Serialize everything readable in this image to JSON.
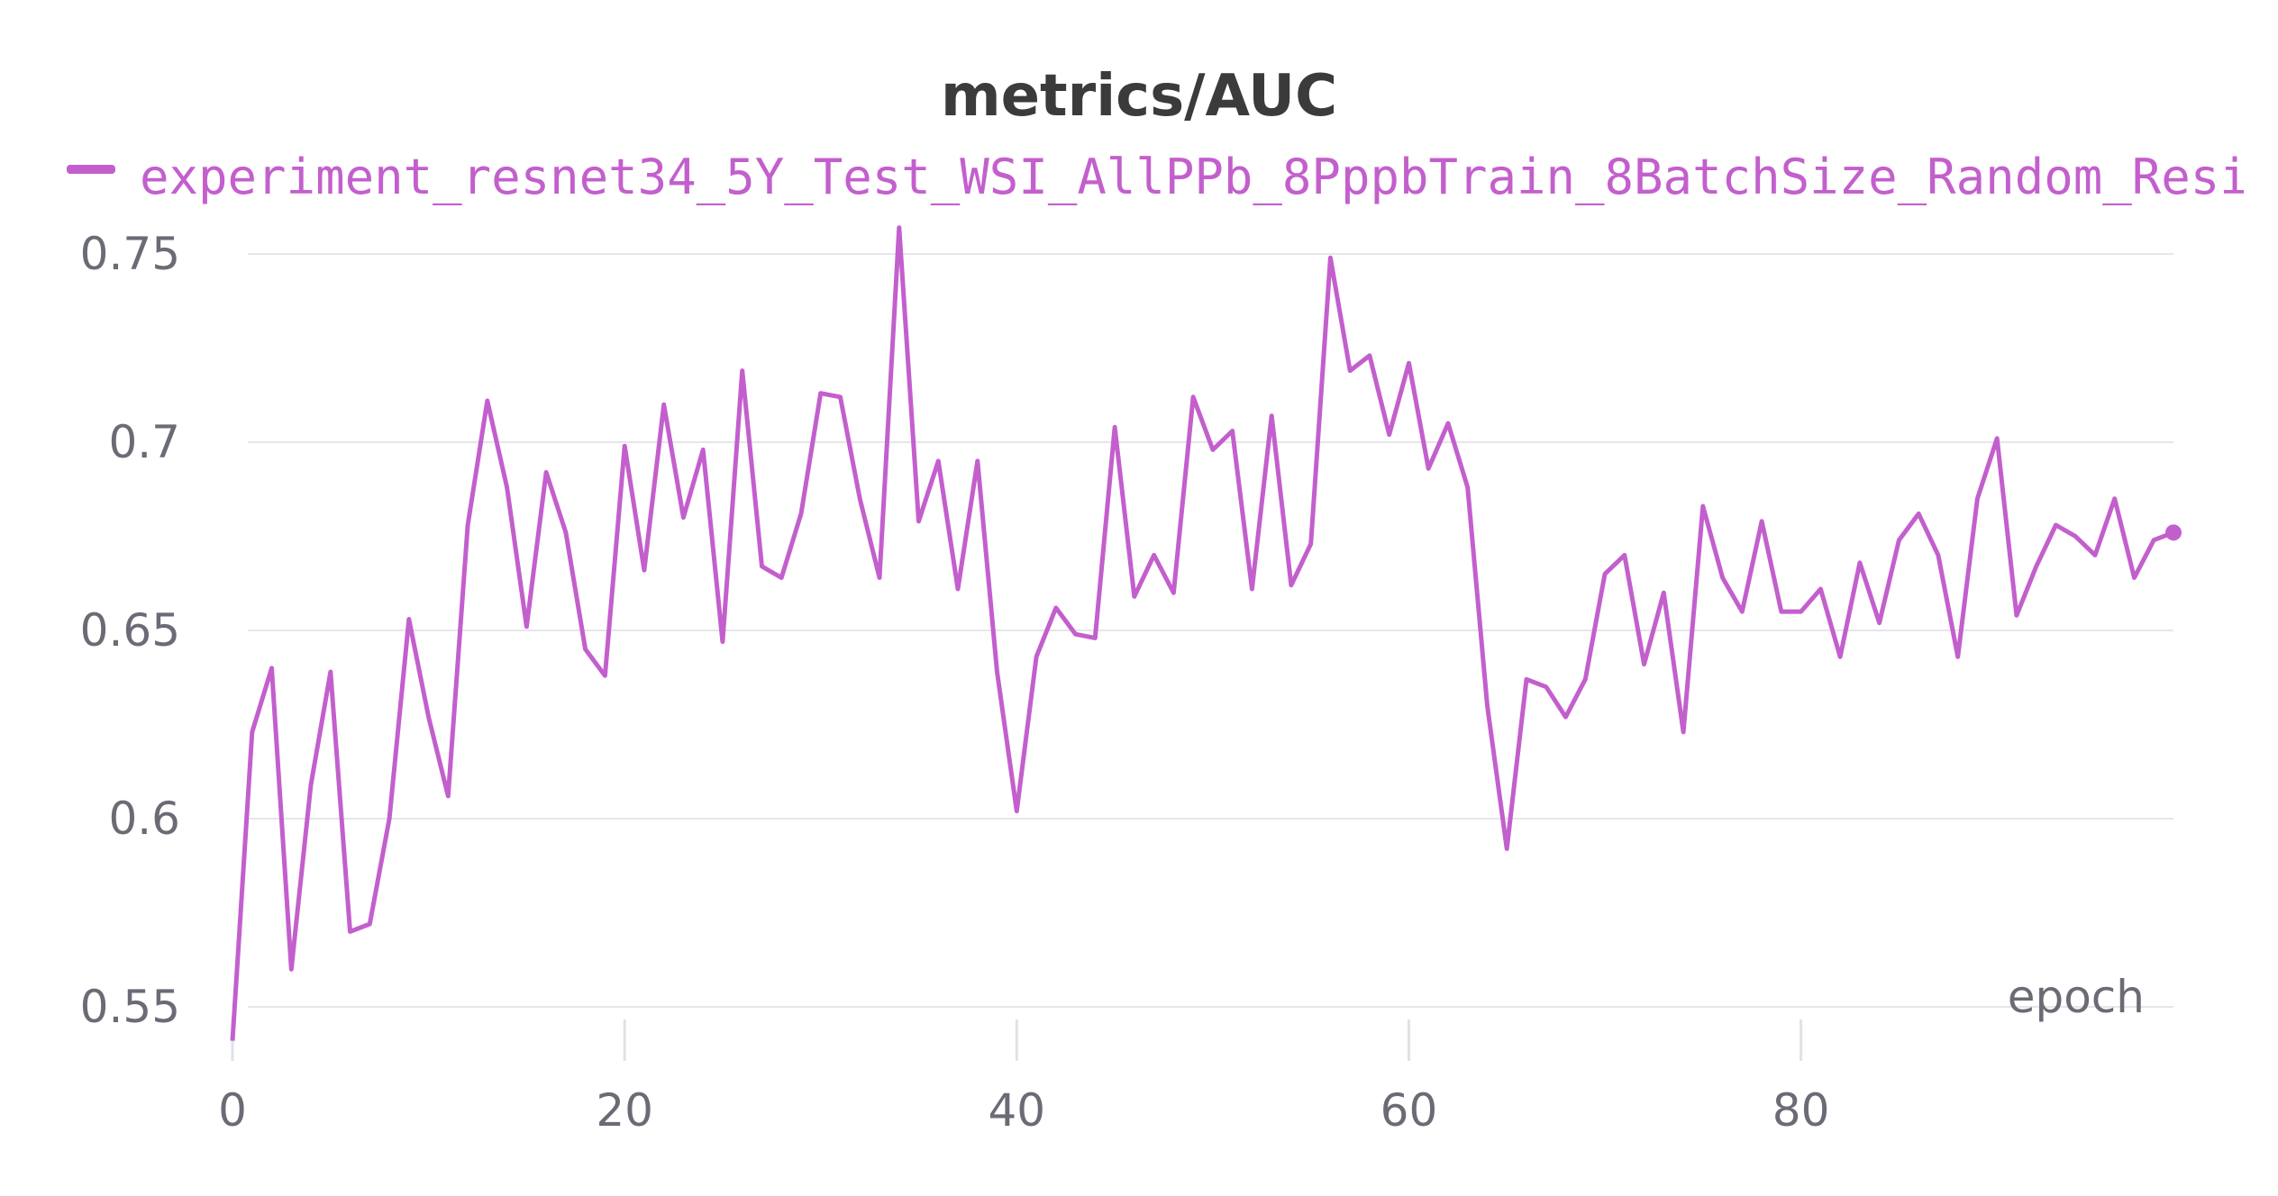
{
  "chart_data": {
    "type": "line",
    "title": "metrics/AUC",
    "xlabel": "epoch",
    "ylabel": "",
    "xlim": [
      0,
      99
    ],
    "ylim": [
      0.54,
      0.757
    ],
    "x_ticks": [
      0,
      20,
      40,
      60,
      80
    ],
    "x_tick_labels": [
      "0",
      "20",
      "40",
      "60",
      "80"
    ],
    "y_ticks": [
      0.55,
      0.6,
      0.65,
      0.7,
      0.75
    ],
    "y_tick_labels": [
      "0.55",
      "0.6",
      "0.65",
      "0.7",
      "0.75"
    ],
    "grid": true,
    "legend_position": "top-left",
    "series": [
      {
        "name": "experiment_resnet34_5Y_Test_WSI_AllPPb_8PppbTrain_8BatchSize_Random_Resi",
        "color": "#c35fcd",
        "x": [
          0,
          1,
          2,
          3,
          4,
          5,
          6,
          7,
          8,
          9,
          10,
          11,
          12,
          13,
          14,
          15,
          16,
          17,
          18,
          19,
          20,
          21,
          22,
          23,
          24,
          25,
          26,
          27,
          28,
          29,
          30,
          31,
          32,
          33,
          34,
          35,
          36,
          37,
          38,
          39,
          40,
          41,
          42,
          43,
          44,
          45,
          46,
          47,
          48,
          49,
          50,
          51,
          52,
          53,
          54,
          55,
          56,
          57,
          58,
          59,
          60,
          61,
          62,
          63,
          64,
          65,
          66,
          67,
          68,
          69,
          70,
          71,
          72,
          73,
          74,
          75,
          76,
          77,
          78,
          79,
          80,
          81,
          82,
          83,
          84,
          85,
          86,
          87,
          88,
          89,
          90,
          91,
          92,
          93,
          94,
          95,
          96,
          97,
          98,
          99
        ],
        "values": [
          0.541,
          0.623,
          0.64,
          0.56,
          0.609,
          0.639,
          0.57,
          0.572,
          0.6,
          0.653,
          0.627,
          0.606,
          0.678,
          0.711,
          0.688,
          0.651,
          0.692,
          0.676,
          0.645,
          0.638,
          0.699,
          0.666,
          0.71,
          0.68,
          0.698,
          0.647,
          0.719,
          0.667,
          0.664,
          0.681,
          0.713,
          0.712,
          0.685,
          0.664,
          0.757,
          0.679,
          0.695,
          0.661,
          0.695,
          0.639,
          0.602,
          0.643,
          0.656,
          0.649,
          0.648,
          0.704,
          0.659,
          0.67,
          0.66,
          0.712,
          0.698,
          0.703,
          0.661,
          0.707,
          0.662,
          0.673,
          0.749,
          0.719,
          0.723,
          0.702,
          0.721,
          0.693,
          0.705,
          0.688,
          0.63,
          0.592,
          0.637,
          0.635,
          0.627,
          0.637,
          0.665,
          0.67,
          0.641,
          0.66,
          0.623,
          0.683,
          0.664,
          0.655,
          0.679,
          0.655,
          0.655,
          0.661,
          0.643,
          0.668,
          0.652,
          0.674,
          0.681,
          0.67,
          0.643,
          0.685,
          0.701,
          0.654,
          0.667,
          0.678,
          0.675,
          0.67,
          0.685,
          0.664,
          0.674,
          0.676
        ]
      }
    ]
  }
}
